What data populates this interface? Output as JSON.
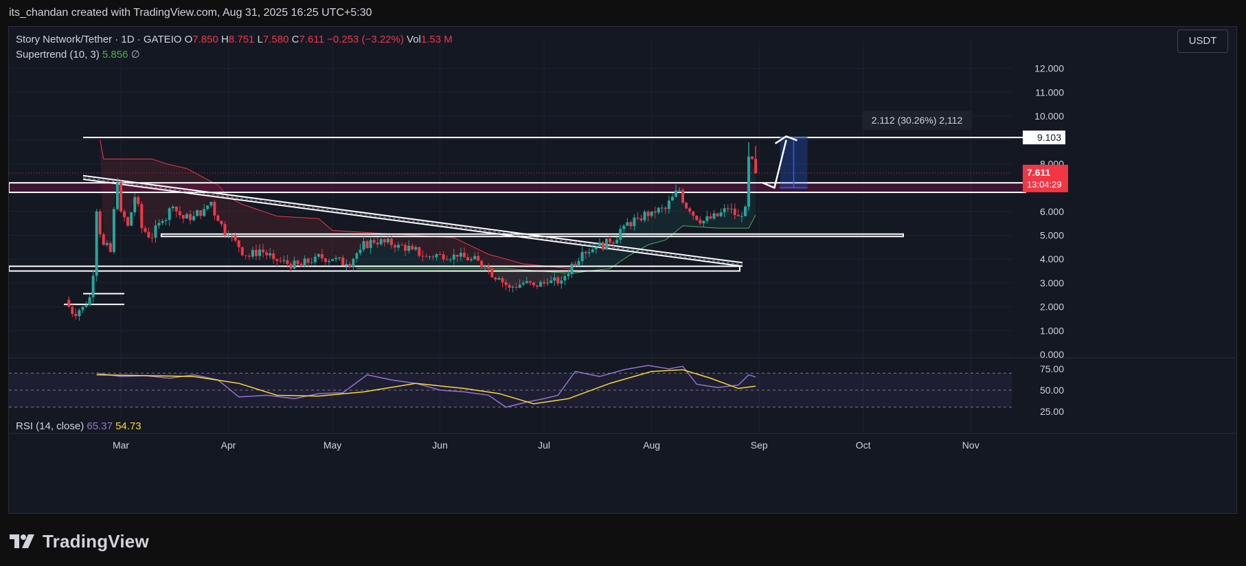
{
  "header": {
    "caption": "its_chandan created with TradingView.com, Aug 31, 2025 16:25 UTC+5:30"
  },
  "symbol": {
    "title": "Story Network/Tether · 1D · GATEIO",
    "open_label": "O",
    "open": "7.850",
    "high_label": "H",
    "high": "8.751",
    "low_label": "L",
    "low": "7.580",
    "close_label": "C",
    "close": "7.611",
    "change": "−0.253 (−3.22%)",
    "vol_label": "Vol",
    "vol": "1.53 M"
  },
  "indicator": {
    "name": "Supertrend (10, 3)",
    "value": "5.856",
    "extra": "∅"
  },
  "rsi": {
    "name": "RSI (14, close)",
    "value": "65.37",
    "ma_value": "54.73",
    "ticks": [
      "75.00",
      "50.00",
      "25.00"
    ]
  },
  "currency_button": "USDT",
  "price_scale": {
    "ticks": [
      "12.000",
      "11.000",
      "10.000",
      "8.000",
      "6.000",
      "5.000",
      "4.000",
      "3.000",
      "2.000",
      "1.000",
      "0.000"
    ],
    "level_label": "9.103",
    "last_price": "7.611",
    "countdown": "13:04:29"
  },
  "measure_label": "2.112 (30.26%) 2,112",
  "time_axis": [
    "Mar",
    "Apr",
    "May",
    "Jun",
    "Jul",
    "Aug",
    "Sep",
    "Oct",
    "Nov"
  ],
  "footer": {
    "brand": "TradingView"
  },
  "colors": {
    "up": "#26a69a",
    "down": "#f23645",
    "rsi": "#9575cd",
    "rsi_ma": "#fdd835",
    "supertrend_up": "#4caf50",
    "supertrend_down": "#f23645",
    "background": "#141823"
  },
  "chart_data": {
    "type": "candlestick",
    "title": "Story Network/Tether · 1D · GATEIO",
    "y_range": [
      0,
      12.5
    ],
    "x_labels": [
      "Mar",
      "Apr",
      "May",
      "Jun",
      "Jul",
      "Aug",
      "Sep",
      "Oct",
      "Nov"
    ],
    "grid": true,
    "price_path": [
      [
        "Feb 13",
        2.3
      ],
      [
        "Feb 15",
        1.7
      ],
      [
        "Feb 18",
        2.0
      ],
      [
        "Feb 20",
        2.4
      ],
      [
        "Feb 21",
        3.3
      ],
      [
        "Feb 22",
        6.0
      ],
      [
        "Feb 24",
        4.6
      ],
      [
        "Feb 26",
        4.3
      ],
      [
        "Feb 27",
        6.1
      ],
      [
        "Feb 28",
        7.2
      ],
      [
        "Mar 1",
        6.0
      ],
      [
        "Mar 3",
        5.4
      ],
      [
        "Mar 5",
        6.6
      ],
      [
        "Mar 7",
        5.3
      ],
      [
        "Mar 10",
        4.9
      ],
      [
        "Mar 13",
        5.6
      ],
      [
        "Mar 16",
        6.2
      ],
      [
        "Mar 19",
        5.7
      ],
      [
        "Mar 22",
        5.8
      ],
      [
        "Mar 25",
        6.1
      ],
      [
        "Mar 27",
        6.4
      ],
      [
        "Mar 29",
        5.6
      ],
      [
        "Apr 1",
        5.0
      ],
      [
        "Apr 4",
        4.5
      ],
      [
        "Apr 7",
        4.1
      ],
      [
        "Apr 10",
        4.4
      ],
      [
        "Apr 14",
        4.0
      ],
      [
        "Apr 18",
        3.8
      ],
      [
        "Apr 22",
        3.7
      ],
      [
        "Apr 26",
        4.1
      ],
      [
        "May 1",
        4.0
      ],
      [
        "May 5",
        3.8
      ],
      [
        "May 9",
        4.4
      ],
      [
        "May 12",
        4.8
      ],
      [
        "May 16",
        4.7
      ],
      [
        "May 20",
        4.6
      ],
      [
        "May 24",
        4.4
      ],
      [
        "May 28",
        4.1
      ],
      [
        "Jun 1",
        4.2
      ],
      [
        "Jun 6",
        4.1
      ],
      [
        "Jun 10",
        4.0
      ],
      [
        "Jun 14",
        3.7
      ],
      [
        "Jun 18",
        3.2
      ],
      [
        "Jun 21",
        2.8
      ],
      [
        "Jun 25",
        3.0
      ],
      [
        "Jun 28",
        2.9
      ],
      [
        "Jul 2",
        3.0
      ],
      [
        "Jul 6",
        3.1
      ],
      [
        "Jul 9",
        3.8
      ],
      [
        "Jul 12",
        4.3
      ],
      [
        "Jul 16",
        4.5
      ],
      [
        "Jul 20",
        4.7
      ],
      [
        "Jul 24",
        5.4
      ],
      [
        "Jul 28",
        5.7
      ],
      [
        "Aug 1",
        6.0
      ],
      [
        "Aug 5",
        6.1
      ],
      [
        "Aug 9",
        6.9
      ],
      [
        "Aug 12",
        6.0
      ],
      [
        "Aug 16",
        5.6
      ],
      [
        "Aug 20",
        5.8
      ],
      [
        "Aug 23",
        6.1
      ],
      [
        "Aug 26",
        5.8
      ],
      [
        "Aug 28",
        6.2
      ],
      [
        "Aug 29",
        8.3
      ],
      [
        "Aug 31",
        7.611
      ]
    ],
    "horizontal_levels": [
      9.103,
      7.2,
      6.8,
      5.05,
      4.95,
      3.7,
      3.5,
      2.55,
      2.1
    ],
    "measure": {
      "from": 6.99,
      "to": 9.103,
      "change": 2.112,
      "percent": 30.26
    },
    "rsi_range": [
      15,
      85
    ],
    "rsi_path": [
      [
        "Feb 22",
        70
      ],
      [
        "Mar 1",
        66
      ],
      [
        "Mar 8",
        67
      ],
      [
        "Mar 15",
        64
      ],
      [
        "Mar 22",
        68
      ],
      [
        "Mar 29",
        62
      ],
      [
        "Apr 4",
        42
      ],
      [
        "Apr 12",
        44
      ],
      [
        "Apr 20",
        40
      ],
      [
        "Apr 27",
        46
      ],
      [
        "May 4",
        47
      ],
      [
        "May 11",
        68
      ],
      [
        "May 18",
        62
      ],
      [
        "May 25",
        58
      ],
      [
        "Jun 1",
        50
      ],
      [
        "Jun 8",
        48
      ],
      [
        "Jun 15",
        44
      ],
      [
        "Jun 20",
        30
      ],
      [
        "Jun 26",
        36
      ],
      [
        "Jul 1",
        40
      ],
      [
        "Jul 5",
        44
      ],
      [
        "Jul 10",
        72
      ],
      [
        "Jul 17",
        66
      ],
      [
        "Jul 24",
        74
      ],
      [
        "Jul 31",
        79
      ],
      [
        "Aug 6",
        75
      ],
      [
        "Aug 10",
        78
      ],
      [
        "Aug 14",
        57
      ],
      [
        "Aug 20",
        53
      ],
      [
        "Aug 26",
        56
      ],
      [
        "Aug 29",
        68
      ],
      [
        "Aug 31",
        65.37
      ]
    ],
    "rsi_ma_path": [
      [
        "Feb 22",
        68
      ],
      [
        "Mar 8",
        67
      ],
      [
        "Mar 22",
        66
      ],
      [
        "Apr 4",
        58
      ],
      [
        "Apr 15",
        44
      ],
      [
        "Apr 27",
        43
      ],
      [
        "May 10",
        48
      ],
      [
        "May 25",
        58
      ],
      [
        "Jun 8",
        52
      ],
      [
        "Jun 18",
        46
      ],
      [
        "Jun 28",
        34
      ],
      [
        "Jul 8",
        40
      ],
      [
        "Jul 20",
        58
      ],
      [
        "Aug 1",
        72
      ],
      [
        "Aug 10",
        74
      ],
      [
        "Aug 18",
        64
      ],
      [
        "Aug 26",
        52
      ],
      [
        "Aug 31",
        54.73
      ]
    ]
  }
}
